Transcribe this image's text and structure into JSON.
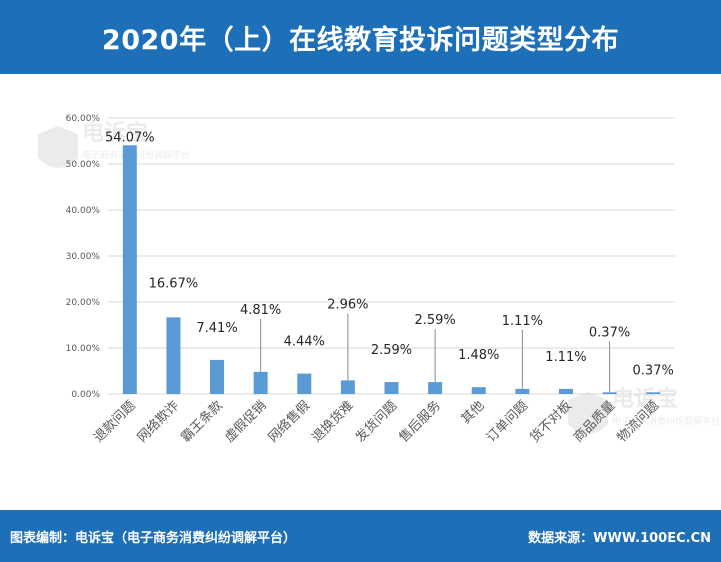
{
  "header": {
    "title": "2020年（上）在线教育投诉问题类型分布"
  },
  "footer": {
    "left_text": "图表编制：电诉宝（电子商务消费纠纷调解平台）",
    "right_text": "数据来源：WWW.100EC.CN"
  },
  "watermark": {
    "brand": "电诉宝",
    "subtitle": "电子商务消费纠纷调解平台"
  },
  "colors": {
    "header_bg": "#1d6fb8",
    "bar": "#5b9bd5",
    "grid": "#d9d9d9",
    "axis_text": "#595959"
  },
  "chart_data": {
    "type": "bar",
    "categories": [
      "退款问题",
      "网络欺诈",
      "霸王条款",
      "虚假促销",
      "网络售假",
      "退换货难",
      "发货问题",
      "售后服务",
      "其他",
      "订单问题",
      "货不对板",
      "商品质量",
      "物流问题"
    ],
    "values": [
      54.07,
      16.67,
      7.41,
      4.81,
      4.44,
      2.96,
      2.59,
      2.59,
      1.48,
      1.11,
      1.11,
      0.37,
      0.37
    ],
    "data_labels": [
      "54.07%",
      "16.67%",
      "7.41%",
      "4.81%",
      "4.44%",
      "2.96%",
      "2.59%",
      "2.59%",
      "1.48%",
      "1.11%",
      "1.11%",
      "0.37%",
      "0.37%"
    ],
    "yticks": [
      "0.00%",
      "10.00%",
      "20.00%",
      "30.00%",
      "40.00%",
      "50.00%",
      "60.00%"
    ],
    "ylim": [
      0,
      60
    ],
    "grid": true,
    "legend": "none",
    "title": "",
    "xlabel": "",
    "ylabel": ""
  }
}
